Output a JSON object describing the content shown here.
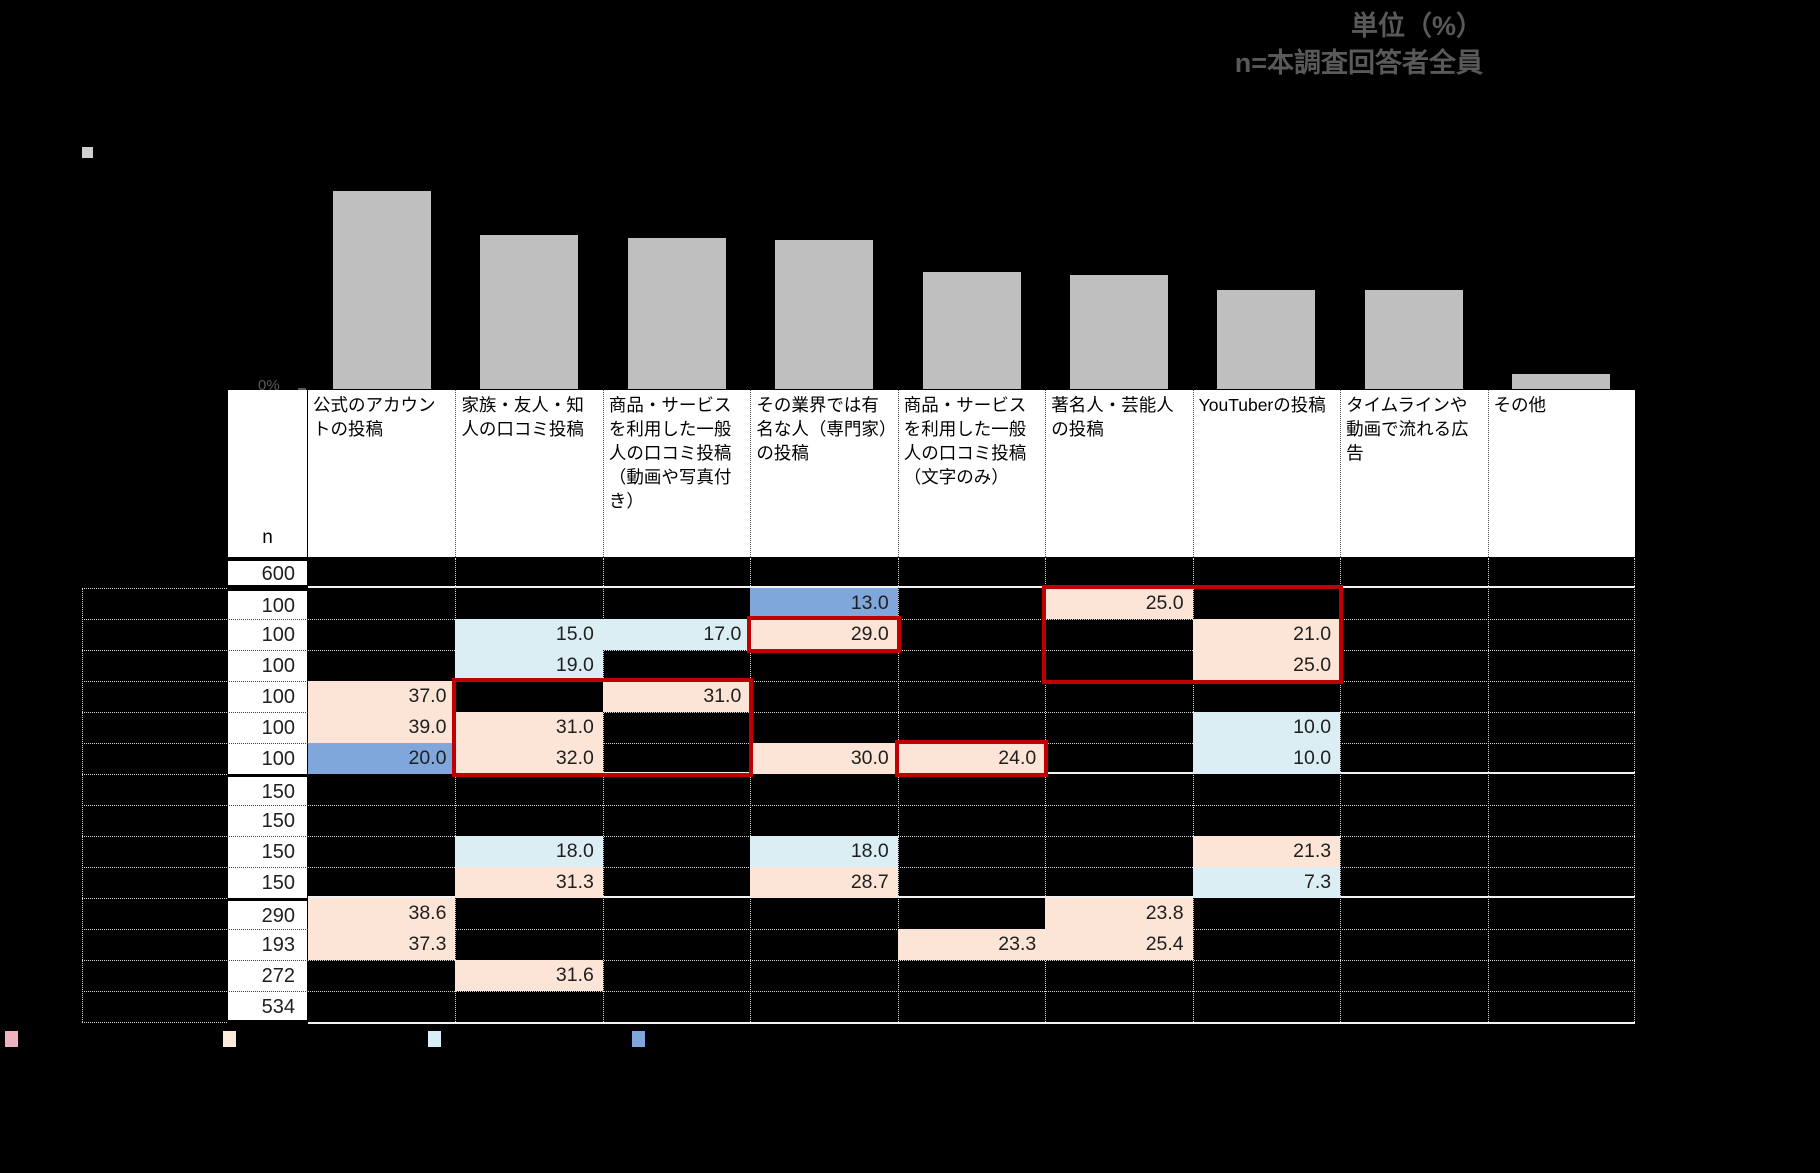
{
  "meta": {
    "unit_label": "単位（%）",
    "sample_label": "n=本調査回答者全員"
  },
  "table": {
    "n_header": "n",
    "columns": [
      "公式のアカウントの投稿",
      "家族・友人・知人の口コミ投稿",
      "商品・サービスを利用した一般人の口コミ投稿（動画や写真付き）",
      "その業界では有名な人（専門家）の投稿",
      "商品・サービスを利用した一般人の口コミ投稿（文字のみ）",
      "著名人・芸能人の投稿",
      "YouTuberの投稿",
      "タイムラインや動画で流れる広告",
      "その他"
    ],
    "rows": [
      {
        "n": "600",
        "cells": {}
      },
      {
        "n": "100",
        "cells": {
          "4": [
            "13.0",
            "mb"
          ],
          "6": [
            "25.0",
            "p"
          ]
        }
      },
      {
        "n": "100",
        "cells": {
          "2": [
            "15.0",
            "lb"
          ],
          "3": [
            "17.0",
            "lb"
          ],
          "4": [
            "29.0",
            "p"
          ],
          "7": [
            "21.0",
            "p"
          ]
        }
      },
      {
        "n": "100",
        "cells": {
          "2": [
            "19.0",
            "lb"
          ],
          "7": [
            "25.0",
            "p"
          ]
        }
      },
      {
        "n": "100",
        "cells": {
          "1": [
            "37.0",
            "p"
          ],
          "3": [
            "31.0",
            "p"
          ]
        }
      },
      {
        "n": "100",
        "cells": {
          "1": [
            "39.0",
            "p"
          ],
          "2": [
            "31.0",
            "p"
          ],
          "7": [
            "10.0",
            "lb"
          ]
        }
      },
      {
        "n": "100",
        "cells": {
          "1": [
            "20.0",
            "mb"
          ],
          "2": [
            "32.0",
            "p"
          ],
          "4": [
            "30.0",
            "p"
          ],
          "5": [
            "24.0",
            "p"
          ],
          "7": [
            "10.0",
            "lb"
          ]
        }
      },
      {
        "n": "150",
        "cells": {}
      },
      {
        "n": "150",
        "cells": {}
      },
      {
        "n": "150",
        "cells": {
          "2": [
            "18.0",
            "lb"
          ],
          "4": [
            "18.0",
            "lb"
          ],
          "7": [
            "21.3",
            "p"
          ]
        }
      },
      {
        "n": "150",
        "cells": {
          "2": [
            "31.3",
            "p"
          ],
          "4": [
            "28.7",
            "p"
          ],
          "7": [
            "7.3",
            "lb"
          ]
        }
      },
      {
        "n": "290",
        "cells": {
          "1": [
            "38.6",
            "p"
          ],
          "6": [
            "23.8",
            "p"
          ]
        }
      },
      {
        "n": "193",
        "cells": {
          "1": [
            "37.3",
            "p"
          ],
          "5": [
            "23.3",
            "p"
          ],
          "6": [
            "25.4",
            "p"
          ]
        }
      },
      {
        "n": "272",
        "cells": {
          "2": [
            "31.6",
            "p"
          ]
        }
      },
      {
        "n": "534",
        "cells": {}
      }
    ],
    "group_breaks_after_row": [
      1,
      7,
      11
    ],
    "highlight_colors": {
      "p": "#fce4d6",
      "lb": "#daeef3",
      "mb": "#7fa7db"
    },
    "red_box_color": "#c00000",
    "red_boxes": [
      {
        "col_start": 6,
        "col_end": 7,
        "row_start": 2,
        "row_end": 4
      },
      {
        "col_start": 4,
        "col_end": 4,
        "row_start": 3,
        "row_end": 3
      },
      {
        "col_start": 2,
        "col_end": 3,
        "row_start": 5,
        "row_end": 7
      },
      {
        "col_start": 5,
        "col_end": 5,
        "row_start": 7,
        "row_end": 7
      }
    ]
  },
  "chart_data": {
    "type": "bar",
    "title": "",
    "categories": [
      "公式のアカウントの投稿",
      "家族・友人・知人の口コミ投稿",
      "商品・サービスを利用した一般人の口コミ投稿（動画や写真付き）",
      "その業界では有名な人（専門家）の投稿",
      "商品・サービスを利用した一般人の口コミ投稿（文字のみ）",
      "著名人・芸能人の投稿",
      "YouTuberの投稿",
      "タイムラインや動画で流れる広告",
      "その他"
    ],
    "values": [
      40,
      31,
      30.5,
      30,
      23.5,
      23,
      20,
      20,
      3
    ],
    "value_precision": "estimated (data labels not visible)",
    "xlabel": "",
    "ylabel": "",
    "ylim": [
      0,
      48
    ],
    "grid": false,
    "legend_position": "none",
    "axis_zero_label": "0%",
    "bar_color": "#bfbfbf"
  },
  "legend": {
    "chips": [
      {
        "name": "legend-chip-high-strong",
        "color": "#efb2bf"
      },
      {
        "name": "legend-chip-high",
        "color": "#fcecdc"
      },
      {
        "name": "legend-chip-low",
        "color": "#d9eef5"
      },
      {
        "name": "legend-chip-low-strong",
        "color": "#7fa7db"
      }
    ]
  }
}
